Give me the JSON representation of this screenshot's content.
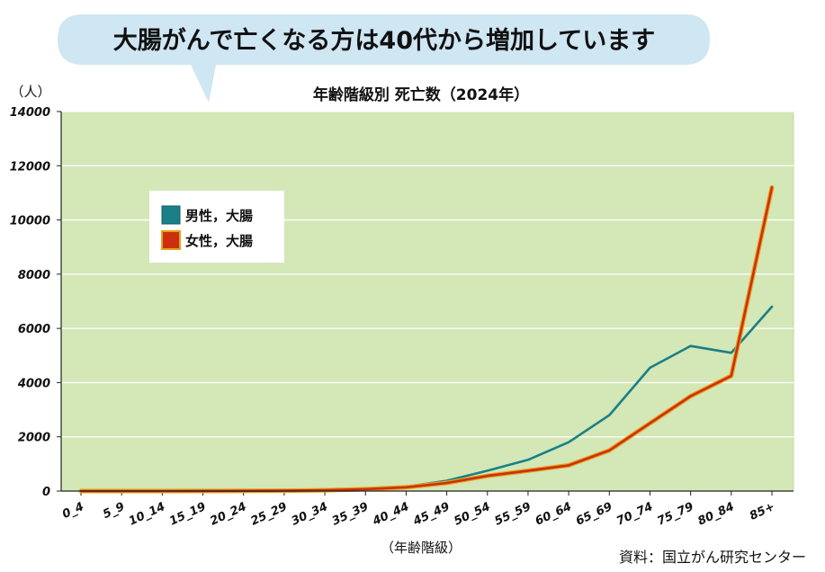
{
  "headline": "大腸がんで亡くなる方は40代から増加しています",
  "source": "資料：国立がん研究センター",
  "colors": {
    "bubble": "#cfe6f3",
    "plot_bg": "#d3e7b7",
    "grid": "#ffffff",
    "male": "#1a7f86",
    "female": "#cc2f10",
    "female_outline": "#e8a21a"
  },
  "chart_data": {
    "type": "line",
    "title": "年齢階級別 死亡数（2024年）",
    "ylabel": "（人）",
    "xlabel": "（年齢階級）",
    "ylim": [
      0,
      14000
    ],
    "yticks": [
      0,
      2000,
      4000,
      6000,
      8000,
      10000,
      12000,
      14000
    ],
    "grid": true,
    "legend_position": "top-left",
    "categories": [
      "0_4",
      "5_9",
      "10_14",
      "15_19",
      "20_24",
      "25_29",
      "30_34",
      "35_39",
      "40_44",
      "45_49",
      "50_54",
      "55_59",
      "60_64",
      "65_69",
      "70_74",
      "75_79",
      "80_84",
      "85+"
    ],
    "series": [
      {
        "name": "男性，大腸",
        "color": "#1a7f86",
        "values": [
          0,
          0,
          0,
          2,
          5,
          12,
          30,
          70,
          160,
          380,
          750,
          1150,
          1800,
          2800,
          4550,
          5350,
          5100,
          6800
        ]
      },
      {
        "name": "女性，大腸",
        "color": "#cc2f10",
        "values": [
          0,
          0,
          0,
          2,
          5,
          12,
          30,
          70,
          140,
          300,
          560,
          750,
          950,
          1500,
          2500,
          3500,
          4250,
          11200
        ]
      }
    ]
  }
}
